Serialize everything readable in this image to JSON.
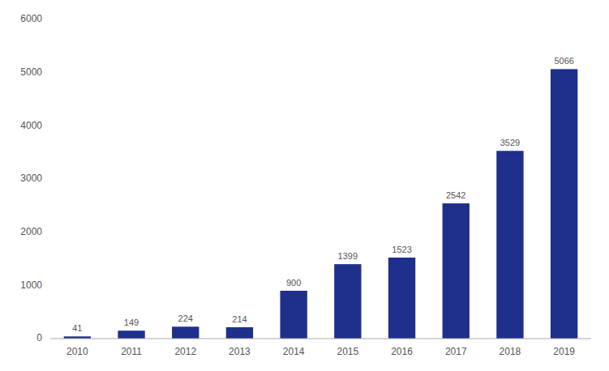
{
  "chart_data": {
    "type": "bar",
    "categories": [
      "2010",
      "2011",
      "2012",
      "2013",
      "2014",
      "2015",
      "2016",
      "2017",
      "2018",
      "2019"
    ],
    "values": [
      41,
      149,
      224,
      214,
      900,
      1399,
      1523,
      2542,
      3529,
      5066
    ],
    "color": "#1F2F8C",
    "ylim": [
      0,
      6000
    ],
    "yticks": [
      0,
      1000,
      2000,
      3000,
      4000,
      5000,
      6000
    ],
    "grid": false,
    "data_labels": true
  }
}
